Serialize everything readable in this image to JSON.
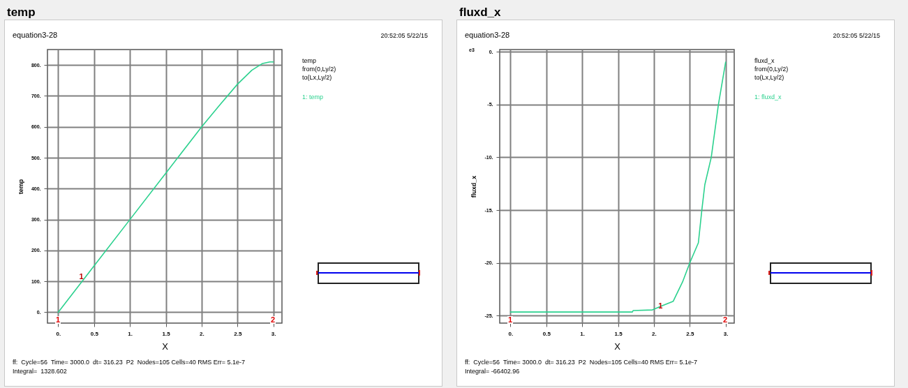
{
  "chart_data": [
    {
      "type": "line",
      "title": "temp",
      "subtitle": "equation3-28",
      "xlabel": "X",
      "ylabel": "temp",
      "legend": "right",
      "grid": true,
      "annotations": [
        "20:52:05 5/22/15",
        "temp",
        "from(0,Ly/2)",
        "to(Lx,Ly/2)",
        "ff:  Cycle=56  Time= 3000.0  dt= 316.23  P2  Nodes=105 Cells=40 RMS Err= 5.1e-7",
        "Integral=  1328.602",
        "1",
        "2",
        {
          "text": "1",
          "x": 0.38,
          "y": 115
        }
      ],
      "x": [
        0,
        0.5,
        1,
        1.5,
        2,
        2.25,
        2.5,
        2.7,
        2.85,
        2.95,
        3
      ],
      "series": [
        {
          "name": "1: temp",
          "color": "#2bd18e",
          "values": [
            0,
            150,
            300,
            450,
            600,
            670,
            738,
            783,
            805,
            810,
            810
          ]
        }
      ],
      "xlim": [
        -0.15,
        3.12
      ],
      "ylim": [
        -35,
        850
      ],
      "xticks": [
        {
          "value": 0,
          "label": "0."
        },
        0.5,
        {
          "value": 1,
          "label": "1."
        },
        1.5,
        {
          "value": 2,
          "label": "2."
        },
        2.5,
        {
          "value": 3,
          "label": "3."
        }
      ],
      "yticks": [
        {
          "value": 0,
          "label": "0."
        },
        {
          "value": 100,
          "label": "100."
        },
        {
          "value": 200,
          "label": "200."
        },
        {
          "value": 300,
          "label": "300."
        },
        {
          "value": 400,
          "label": "400."
        },
        {
          "value": 500,
          "label": "500."
        },
        {
          "value": 600,
          "label": "600."
        },
        {
          "value": 700,
          "label": "700."
        },
        {
          "value": 800,
          "label": "800."
        }
      ]
    },
    {
      "type": "line",
      "title": "fluxd_x",
      "subtitle": "equation3-28",
      "xlabel": "X",
      "ylabel": "fluxd_x",
      "legend": "right",
      "grid": true,
      "annotations": [
        "20:52:05 5/22/15",
        "fluxd_x",
        "from(0,Ly/2)",
        "to(Lx,Ly/2)",
        "ff:  Cycle=56  Time= 3000.0  dt= 316.23  P2  Nodes=105 Cells=40 RMS Err= 5.1e-7",
        "Integral= -66402.96",
        "1",
        "2",
        "e3",
        {
          "text": "1",
          "x": 2.15,
          "y": -24.1
        }
      ],
      "x": [
        0,
        0.5,
        1,
        1.5,
        1.7,
        1.71,
        1.98,
        2.1,
        2.27,
        2.3,
        2.4,
        2.5,
        2.62,
        2.67,
        2.71,
        2.8,
        2.9,
        3
      ],
      "series": [
        {
          "name": "1: fluxd_x",
          "color": "#2bd18e",
          "values": [
            -24.65,
            -24.65,
            -24.65,
            -24.65,
            -24.65,
            -24.51,
            -24.45,
            -24.1,
            -23.63,
            -23.2,
            -21.8,
            -20,
            -18.1,
            -14.9,
            -12.6,
            -10,
            -5,
            -1.0
          ]
        }
      ],
      "xlim": [
        -0.15,
        3.12
      ],
      "ylim": [
        -25.7,
        0.2
      ],
      "xticks": [
        {
          "value": 0,
          "label": "0."
        },
        0.5,
        {
          "value": 1,
          "label": "1."
        },
        1.5,
        {
          "value": 2,
          "label": "2."
        },
        2.5,
        {
          "value": 3,
          "label": "3."
        }
      ],
      "yticks": [
        {
          "value": -25,
          "label": "-25."
        },
        {
          "value": -20,
          "label": "-20."
        },
        {
          "value": -15,
          "label": "-15."
        },
        {
          "value": -10,
          "label": "-10."
        },
        {
          "value": -5,
          "label": "-5."
        },
        {
          "value": 0,
          "label": "0."
        }
      ]
    }
  ]
}
